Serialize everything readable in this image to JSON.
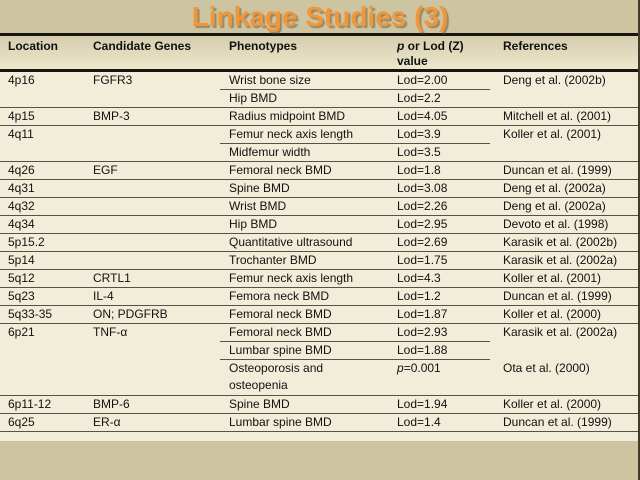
{
  "title": "Linkage Studies (3)",
  "colors": {
    "slide_background": "#cdc5a2",
    "table_body_background": "#f1edd9",
    "header_band_top": "#d5cdae",
    "header_band_bottom": "#ece7cb",
    "title_orange": "#f0973a",
    "thick_rule": "#17150f",
    "thin_rule": "#55524a",
    "text": "#111111"
  },
  "table": {
    "headers": {
      "location": "Location",
      "genes": "Candidate Genes",
      "phenotypes": "Phenotypes",
      "value_italic": "p",
      "value_rest": " or Lod (Z)",
      "value_line2": "value",
      "references": "References"
    },
    "rows": [
      {
        "location": "4p16",
        "genes": "FGFR3",
        "phenotype": "Wrist bone size",
        "phenotype2": "",
        "value_italic": "",
        "value": "Lod=2.00",
        "reference": "Deng et al. (2002b)",
        "separator": "partial",
        "tall": false
      },
      {
        "location": "",
        "genes": "",
        "phenotype": "Hip BMD",
        "phenotype2": "",
        "value_italic": "",
        "value": "Lod=2.2",
        "reference": "",
        "separator": "full",
        "tall": false
      },
      {
        "location": "4p15",
        "genes": "BMP-3",
        "phenotype": "Radius midpoint BMD",
        "phenotype2": "",
        "value_italic": "",
        "value": "Lod=4.05",
        "reference": "Mitchell et al. (2001)",
        "separator": "full",
        "tall": false
      },
      {
        "location": "4q11",
        "genes": "",
        "phenotype": "Femur neck axis length",
        "phenotype2": "",
        "value_italic": "",
        "value": "Lod=3.9",
        "reference": "Koller et al. (2001)",
        "separator": "partial",
        "tall": false
      },
      {
        "location": "",
        "genes": "",
        "phenotype": "Midfemur width",
        "phenotype2": "",
        "value_italic": "",
        "value": "Lod=3.5",
        "reference": "",
        "separator": "full",
        "tall": false
      },
      {
        "location": "4q26",
        "genes": "EGF",
        "phenotype": "Femoral neck BMD",
        "phenotype2": "",
        "value_italic": "",
        "value": "Lod=1.8",
        "reference": "Duncan et al. (1999)",
        "separator": "full",
        "tall": false
      },
      {
        "location": "4q31",
        "genes": "",
        "phenotype": "Spine BMD",
        "phenotype2": "",
        "value_italic": "",
        "value": "Lod=3.08",
        "reference": "Deng et al. (2002a)",
        "separator": "full",
        "tall": false
      },
      {
        "location": "4q32",
        "genes": "",
        "phenotype": "Wrist BMD",
        "phenotype2": "",
        "value_italic": "",
        "value": "Lod=2.26",
        "reference": "Deng et al. (2002a)",
        "separator": "full",
        "tall": false
      },
      {
        "location": "4q34",
        "genes": "",
        "phenotype": "Hip BMD",
        "phenotype2": "",
        "value_italic": "",
        "value": "Lod=2.95",
        "reference": "Devoto et al. (1998)",
        "separator": "full",
        "tall": false
      },
      {
        "location": "5p15.2",
        "genes": "",
        "phenotype": "Quantitative ultrasound",
        "phenotype2": "",
        "value_italic": "",
        "value": "Lod=2.69",
        "reference": "Karasik et al. (2002b)",
        "separator": "full",
        "tall": false
      },
      {
        "location": "5p14",
        "genes": "",
        "phenotype": "Trochanter BMD",
        "phenotype2": "",
        "value_italic": "",
        "value": "Lod=1.75",
        "reference": "Karasik et al. (2002a)",
        "separator": "full",
        "tall": false
      },
      {
        "location": "5q12",
        "genes": "CRTL1",
        "phenotype": "Femur neck axis length",
        "phenotype2": "",
        "value_italic": "",
        "value": "Lod=4.3",
        "reference": "Koller et al. (2001)",
        "separator": "full",
        "tall": false
      },
      {
        "location": "5q23",
        "genes": "IL-4",
        "phenotype": "Femora neck BMD",
        "phenotype2": "",
        "value_italic": "",
        "value": "Lod=1.2",
        "reference": "Duncan et al. (1999)",
        "separator": "full",
        "tall": false
      },
      {
        "location": "5q33-35",
        "genes": "ON; PDGFRB",
        "phenotype": "Femoral neck BMD",
        "phenotype2": "",
        "value_italic": "",
        "value": "Lod=1.87",
        "reference": "Koller et al. (2000)",
        "separator": "full",
        "tall": false
      },
      {
        "location": "6p21",
        "genes": "TNF-α",
        "phenotype": "Femoral neck BMD",
        "phenotype2": "",
        "value_italic": "",
        "value": "Lod=2.93",
        "reference": "Karasik et al. (2002a)",
        "separator": "partial",
        "tall": false
      },
      {
        "location": "",
        "genes": "",
        "phenotype": "Lumbar spine BMD",
        "phenotype2": "",
        "value_italic": "",
        "value": "Lod=1.88",
        "reference": "",
        "separator": "partial",
        "tall": false
      },
      {
        "location": "",
        "genes": "",
        "phenotype": "Osteoporosis and",
        "phenotype2": "osteopenia",
        "value_italic": "p",
        "value": "=0.001",
        "reference": "Ota et al. (2000)",
        "separator": "full",
        "tall": true
      },
      {
        "location": "6p11-12",
        "genes": "BMP-6",
        "phenotype": "Spine BMD",
        "phenotype2": "",
        "value_italic": "",
        "value": "Lod=1.94",
        "reference": "Koller et al. (2000)",
        "separator": "full",
        "tall": false
      },
      {
        "location": "6q25",
        "genes": "ER-α",
        "phenotype": "Lumbar spine BMD",
        "phenotype2": "",
        "value_italic": "",
        "value": "Lod=1.4",
        "reference": "Duncan et al. (1999)",
        "separator": "full",
        "tall": false
      }
    ]
  }
}
